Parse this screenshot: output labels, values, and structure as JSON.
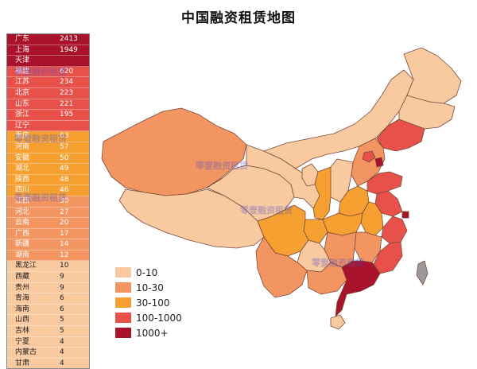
{
  "title": "中国融资租赁地图",
  "watermark": "零壹融资租赁",
  "colors": {
    "c1": "#f9c9a0",
    "c2": "#f29560",
    "c3": "#f5a030",
    "c4": "#e8504a",
    "c5": "#a8122a"
  },
  "legend": [
    {
      "label": "0-10",
      "color": "#f9c9a0"
    },
    {
      "label": "10-30",
      "color": "#f29560"
    },
    {
      "label": "30-100",
      "color": "#f5a030"
    },
    {
      "label": "100-1000",
      "color": "#e8504a"
    },
    {
      "label": "1000+",
      "color": "#a8122a"
    }
  ],
  "provinces": [
    {
      "name": "广东",
      "value": "2413",
      "band": "c5"
    },
    {
      "name": "上海",
      "value": "1949",
      "band": "c5"
    },
    {
      "name": "天津",
      "value": "",
      "band": "c5"
    },
    {
      "name": "福建",
      "value": "620",
      "band": "c4"
    },
    {
      "name": "江苏",
      "value": "234",
      "band": "c4"
    },
    {
      "name": "北京",
      "value": "223",
      "band": "c4"
    },
    {
      "name": "山东",
      "value": "221",
      "band": "c4"
    },
    {
      "name": "浙江",
      "value": "195",
      "band": "c4"
    },
    {
      "name": "辽宁",
      "value": "",
      "band": "c4"
    },
    {
      "name": "重庆",
      "value": "63",
      "band": "c3"
    },
    {
      "name": "河南",
      "value": "57",
      "band": "c3"
    },
    {
      "name": "安徽",
      "value": "50",
      "band": "c3"
    },
    {
      "name": "湖北",
      "value": "49",
      "band": "c3"
    },
    {
      "name": "陕西",
      "value": "48",
      "band": "c3"
    },
    {
      "name": "四川",
      "value": "46",
      "band": "c3"
    },
    {
      "name": "江西",
      "value": "30",
      "band": "c2"
    },
    {
      "name": "河北",
      "value": "27",
      "band": "c2"
    },
    {
      "name": "云南",
      "value": "20",
      "band": "c2"
    },
    {
      "name": "广西",
      "value": "17",
      "band": "c2"
    },
    {
      "name": "新疆",
      "value": "14",
      "band": "c2"
    },
    {
      "name": "湖南",
      "value": "12",
      "band": "c2"
    },
    {
      "name": "黑龙江",
      "value": "10",
      "band": "c1"
    },
    {
      "name": "西藏",
      "value": "9",
      "band": "c1"
    },
    {
      "name": "贵州",
      "value": "9",
      "band": "c1"
    },
    {
      "name": "青海",
      "value": "6",
      "band": "c1"
    },
    {
      "name": "海南",
      "value": "6",
      "band": "c1"
    },
    {
      "name": "山西",
      "value": "5",
      "band": "c1"
    },
    {
      "name": "吉林",
      "value": "5",
      "band": "c1"
    },
    {
      "name": "宁夏",
      "value": "4",
      "band": "c1"
    },
    {
      "name": "内蒙古",
      "value": "4",
      "band": "c1"
    },
    {
      "name": "甘肃",
      "value": "4",
      "band": "c1"
    }
  ]
}
